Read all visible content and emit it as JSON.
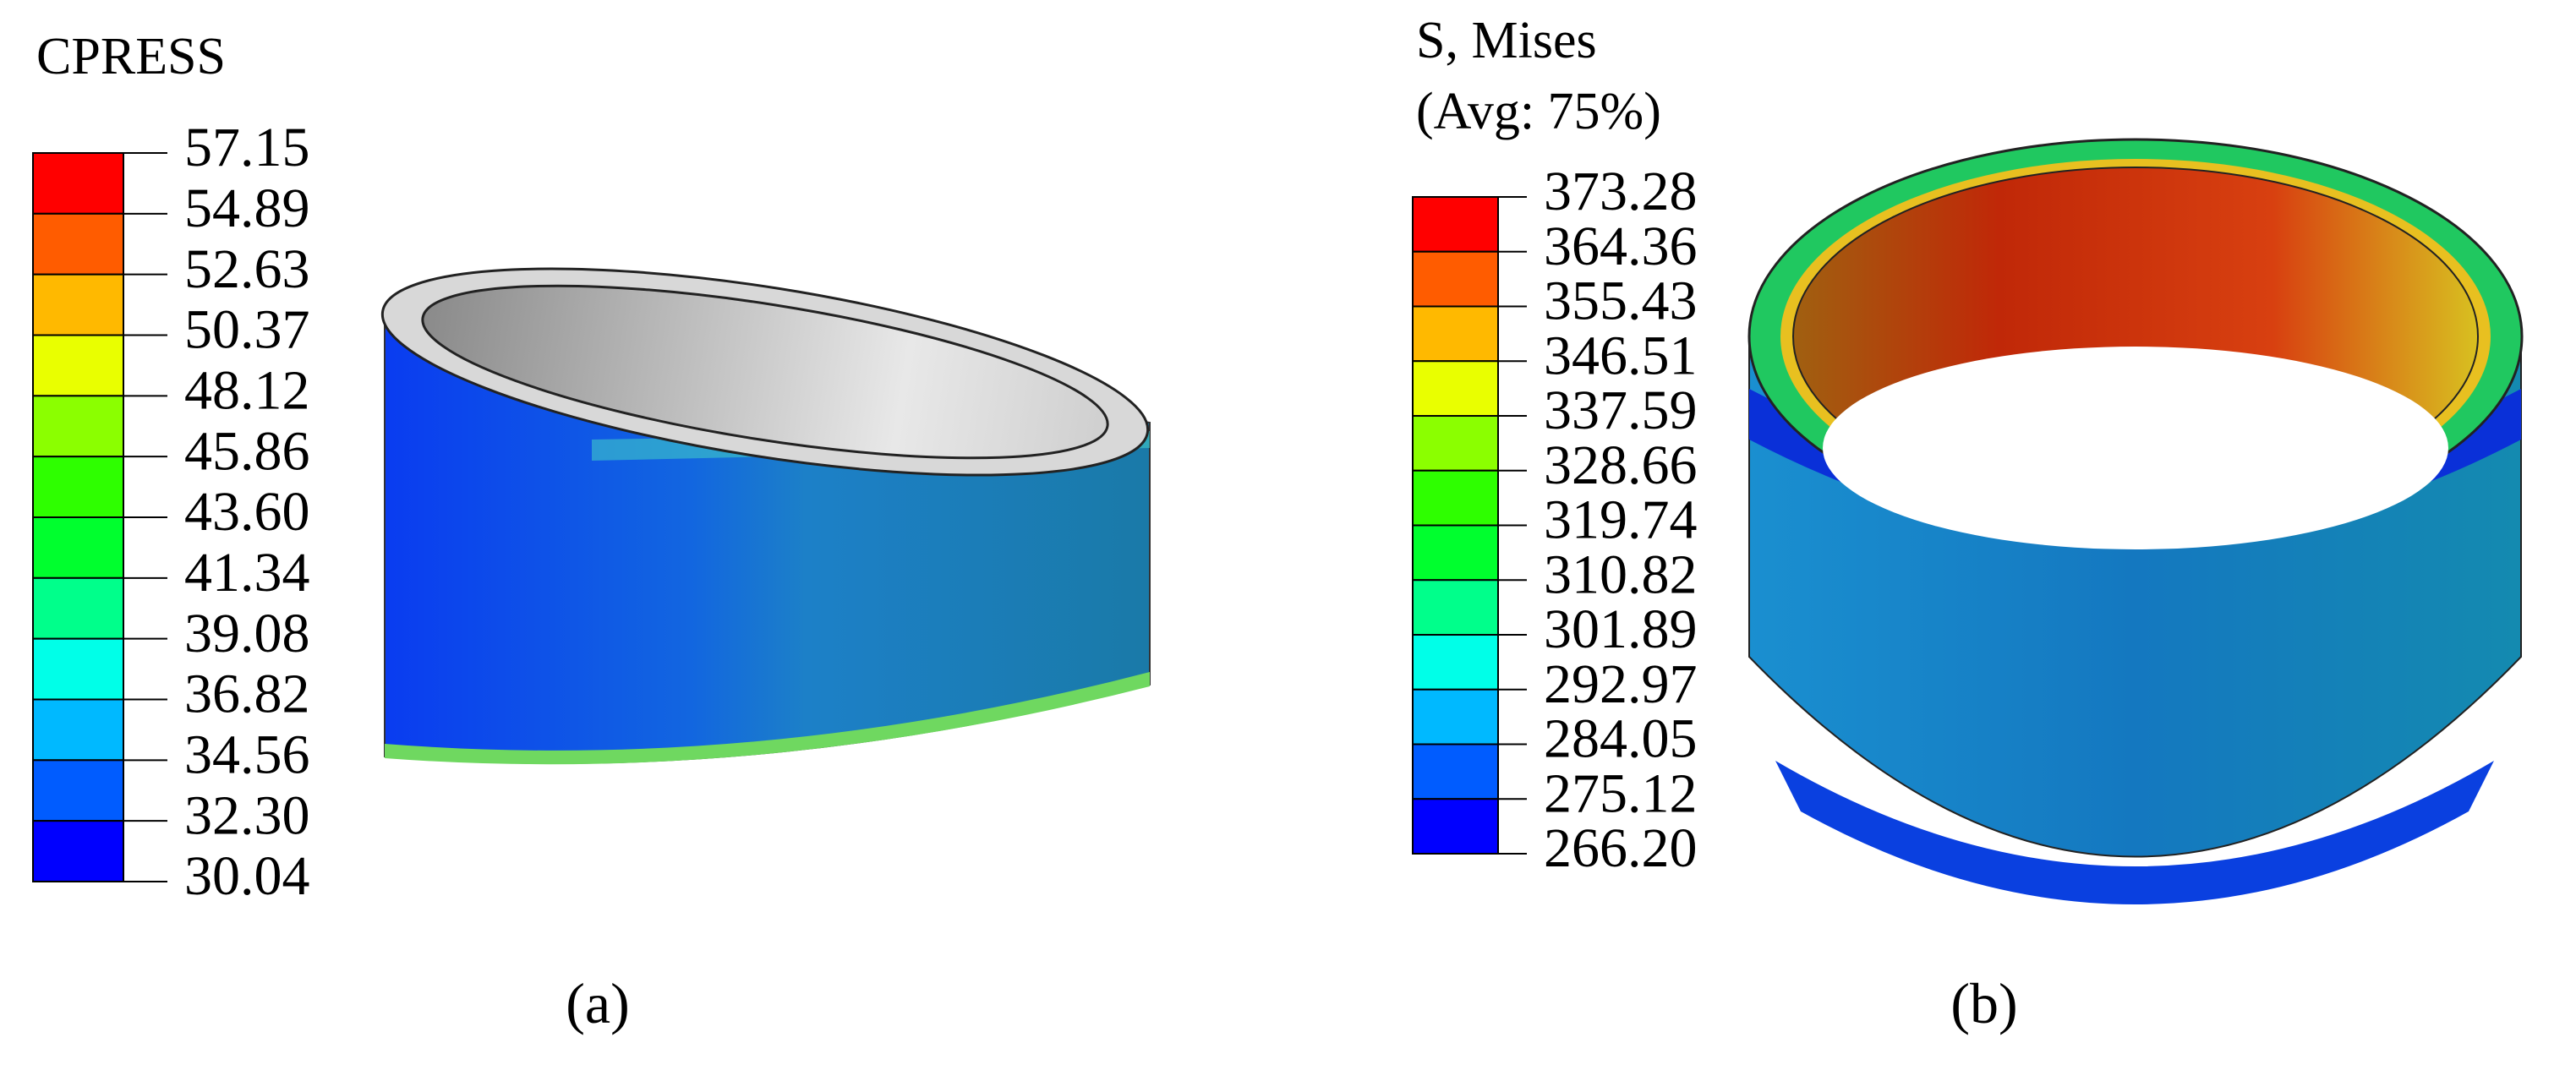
{
  "panels": [
    {
      "legend_title": [
        "CPRESS"
      ],
      "levels": [
        "57.15",
        "54.89",
        "52.63",
        "50.37",
        "48.12",
        "45.86",
        "43.60",
        "41.34",
        "39.08",
        "36.82",
        "34.56",
        "32.30",
        "30.04"
      ],
      "colors": [
        "#ff0000",
        "#ff5c00",
        "#ffb900",
        "#e9ff00",
        "#8bff00",
        "#2eff00",
        "#00ff2e",
        "#00ff8b",
        "#00ffe8",
        "#00b9ff",
        "#005cff",
        "#0000ff"
      ],
      "caption": "(a)"
    },
    {
      "legend_title": [
        "S, Mises",
        "(Avg: 75%)"
      ],
      "levels": [
        "373.28",
        "364.36",
        "355.43",
        "346.51",
        "337.59",
        "328.66",
        "319.74",
        "310.82",
        "301.89",
        "292.97",
        "284.05",
        "275.12",
        "266.20"
      ],
      "colors": [
        "#ff0000",
        "#ff5c00",
        "#ffb900",
        "#e9ff00",
        "#8bff00",
        "#2eff00",
        "#00ff2e",
        "#00ff8b",
        "#00ffe8",
        "#00b9ff",
        "#005cff",
        "#0000ff"
      ],
      "caption": "(b)"
    }
  ]
}
